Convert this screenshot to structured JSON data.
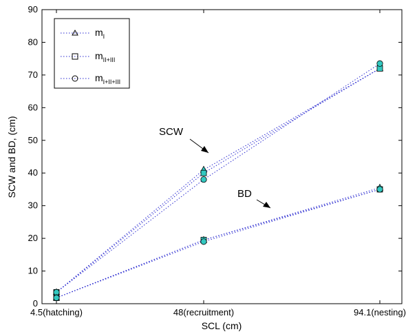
{
  "chart_data": {
    "type": "line",
    "xlabel": "SCL (cm)",
    "ylabel": "SCW and BD, (cm)",
    "ylim": [
      0,
      90
    ],
    "yticks": [
      0,
      10,
      20,
      30,
      40,
      50,
      60,
      70,
      80,
      90
    ],
    "categories": [
      "4.5(hatching)",
      "48(recruitment)",
      "94.1(nesting)"
    ],
    "grid": false,
    "legend_position": "top-left",
    "legend": [
      {
        "label": "m",
        "sub": "I",
        "marker": "triangle"
      },
      {
        "label": "m",
        "sub": "II+III",
        "marker": "square"
      },
      {
        "label": "m",
        "sub": "I+II+III",
        "marker": "circle"
      }
    ],
    "annotations": [
      {
        "text": "SCW",
        "points_to": "SCW lines near 48"
      },
      {
        "text": "BD",
        "points_to": "BD lines between 48 and 94.1"
      }
    ],
    "series": [
      {
        "legend_index": 0,
        "group": "SCW",
        "marker": "triangle",
        "values": [
          3.5,
          41,
          72
        ]
      },
      {
        "legend_index": 1,
        "group": "SCW",
        "marker": "square",
        "values": [
          3.5,
          40,
          72
        ]
      },
      {
        "legend_index": 2,
        "group": "SCW",
        "marker": "circle",
        "values": [
          3.5,
          38,
          73.5
        ]
      },
      {
        "legend_index": 0,
        "group": "BD",
        "marker": "triangle",
        "values": [
          1.8,
          19.5,
          35.5
        ]
      },
      {
        "legend_index": 1,
        "group": "BD",
        "marker": "square",
        "values": [
          1.8,
          19.5,
          35
        ]
      },
      {
        "legend_index": 2,
        "group": "BD",
        "marker": "circle",
        "values": [
          1.8,
          19,
          35
        ]
      }
    ],
    "colors": {
      "line": "#2a2ad0",
      "marker_fill": "#33c8c0",
      "marker_edge": "#000000",
      "axis": "#000000"
    }
  }
}
